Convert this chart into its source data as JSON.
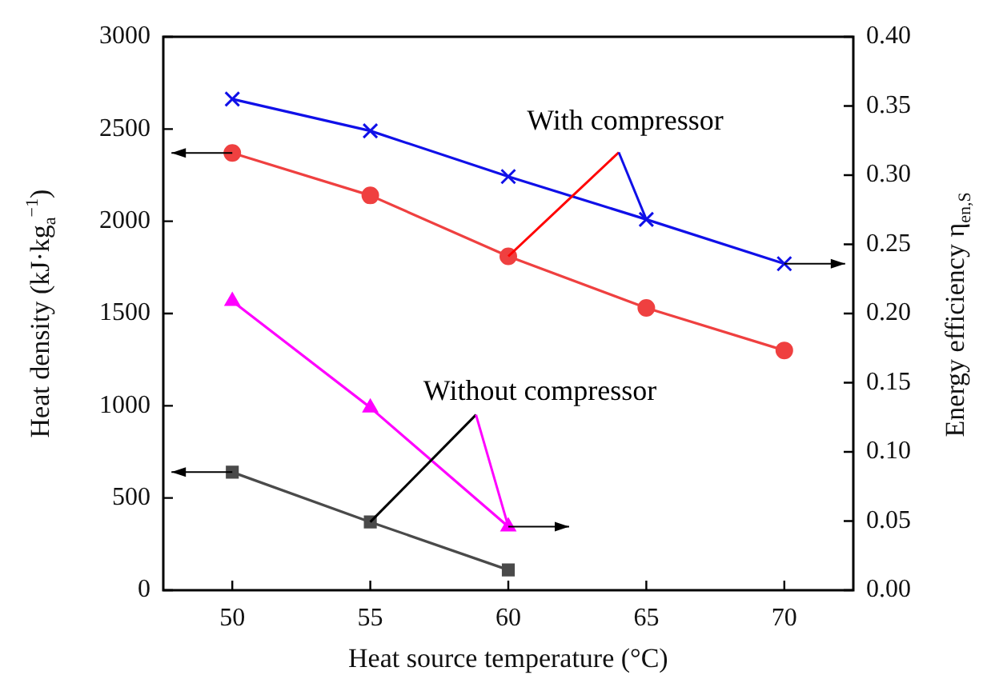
{
  "chart_data": {
    "type": "line",
    "xlabel": "Heat source temperature (°C)",
    "ylabel": "Heat density (kJ·kg$_{a}$$^{−1}$)",
    "y2label": "Energy efficiency η$_{en,S}$",
    "x": [
      50,
      55,
      60,
      65,
      70
    ],
    "xlim": [
      47.5,
      72.5
    ],
    "xticks": [
      50,
      55,
      60,
      65,
      70
    ],
    "ylim": [
      0,
      3000
    ],
    "yticks": [
      0,
      500,
      1000,
      1500,
      2000,
      2500,
      3000
    ],
    "y2lim": [
      0,
      0.4
    ],
    "y2ticks": [
      {
        "value": 0,
        "label": "0.00"
      },
      {
        "value": 0.05,
        "label": "0.05"
      },
      {
        "value": 0.1,
        "label": "0.10"
      },
      {
        "value": 0.15,
        "label": "0.15"
      },
      {
        "value": 0.2,
        "label": "0.20"
      },
      {
        "value": 0.25,
        "label": "0.25"
      },
      {
        "value": 0.3,
        "label": "0.30"
      },
      {
        "value": 0.35,
        "label": "0.35"
      },
      {
        "value": 0.4,
        "label": "0.40"
      }
    ],
    "series": [
      {
        "color": "#ef4040",
        "marker": "circle",
        "values": [
          2370,
          2140,
          1810,
          1530,
          1300
        ]
      },
      {
        "color": "#1010e8",
        "marker": "cross",
        "axis": "y2",
        "values": [
          0.355,
          0.332,
          0.299,
          0.268,
          0.236
        ]
      },
      {
        "color": "#ff00ff",
        "marker": "triangle",
        "axis": "y2",
        "x": [
          50,
          55,
          60
        ],
        "values": [
          0.209,
          0.132,
          0.046
        ]
      },
      {
        "color": "#4a4a4a",
        "marker": "square",
        "x": [
          50,
          55,
          60
        ],
        "values": [
          640,
          370,
          110
        ]
      }
    ],
    "annotations": [
      {
        "text": "With compressor",
        "x": 60,
        "y": 1810
      },
      {
        "text": "Without compressor",
        "x": 55,
        "y": 370
      }
    ],
    "grid": false,
    "legend": false,
    "line_style": "solid"
  }
}
